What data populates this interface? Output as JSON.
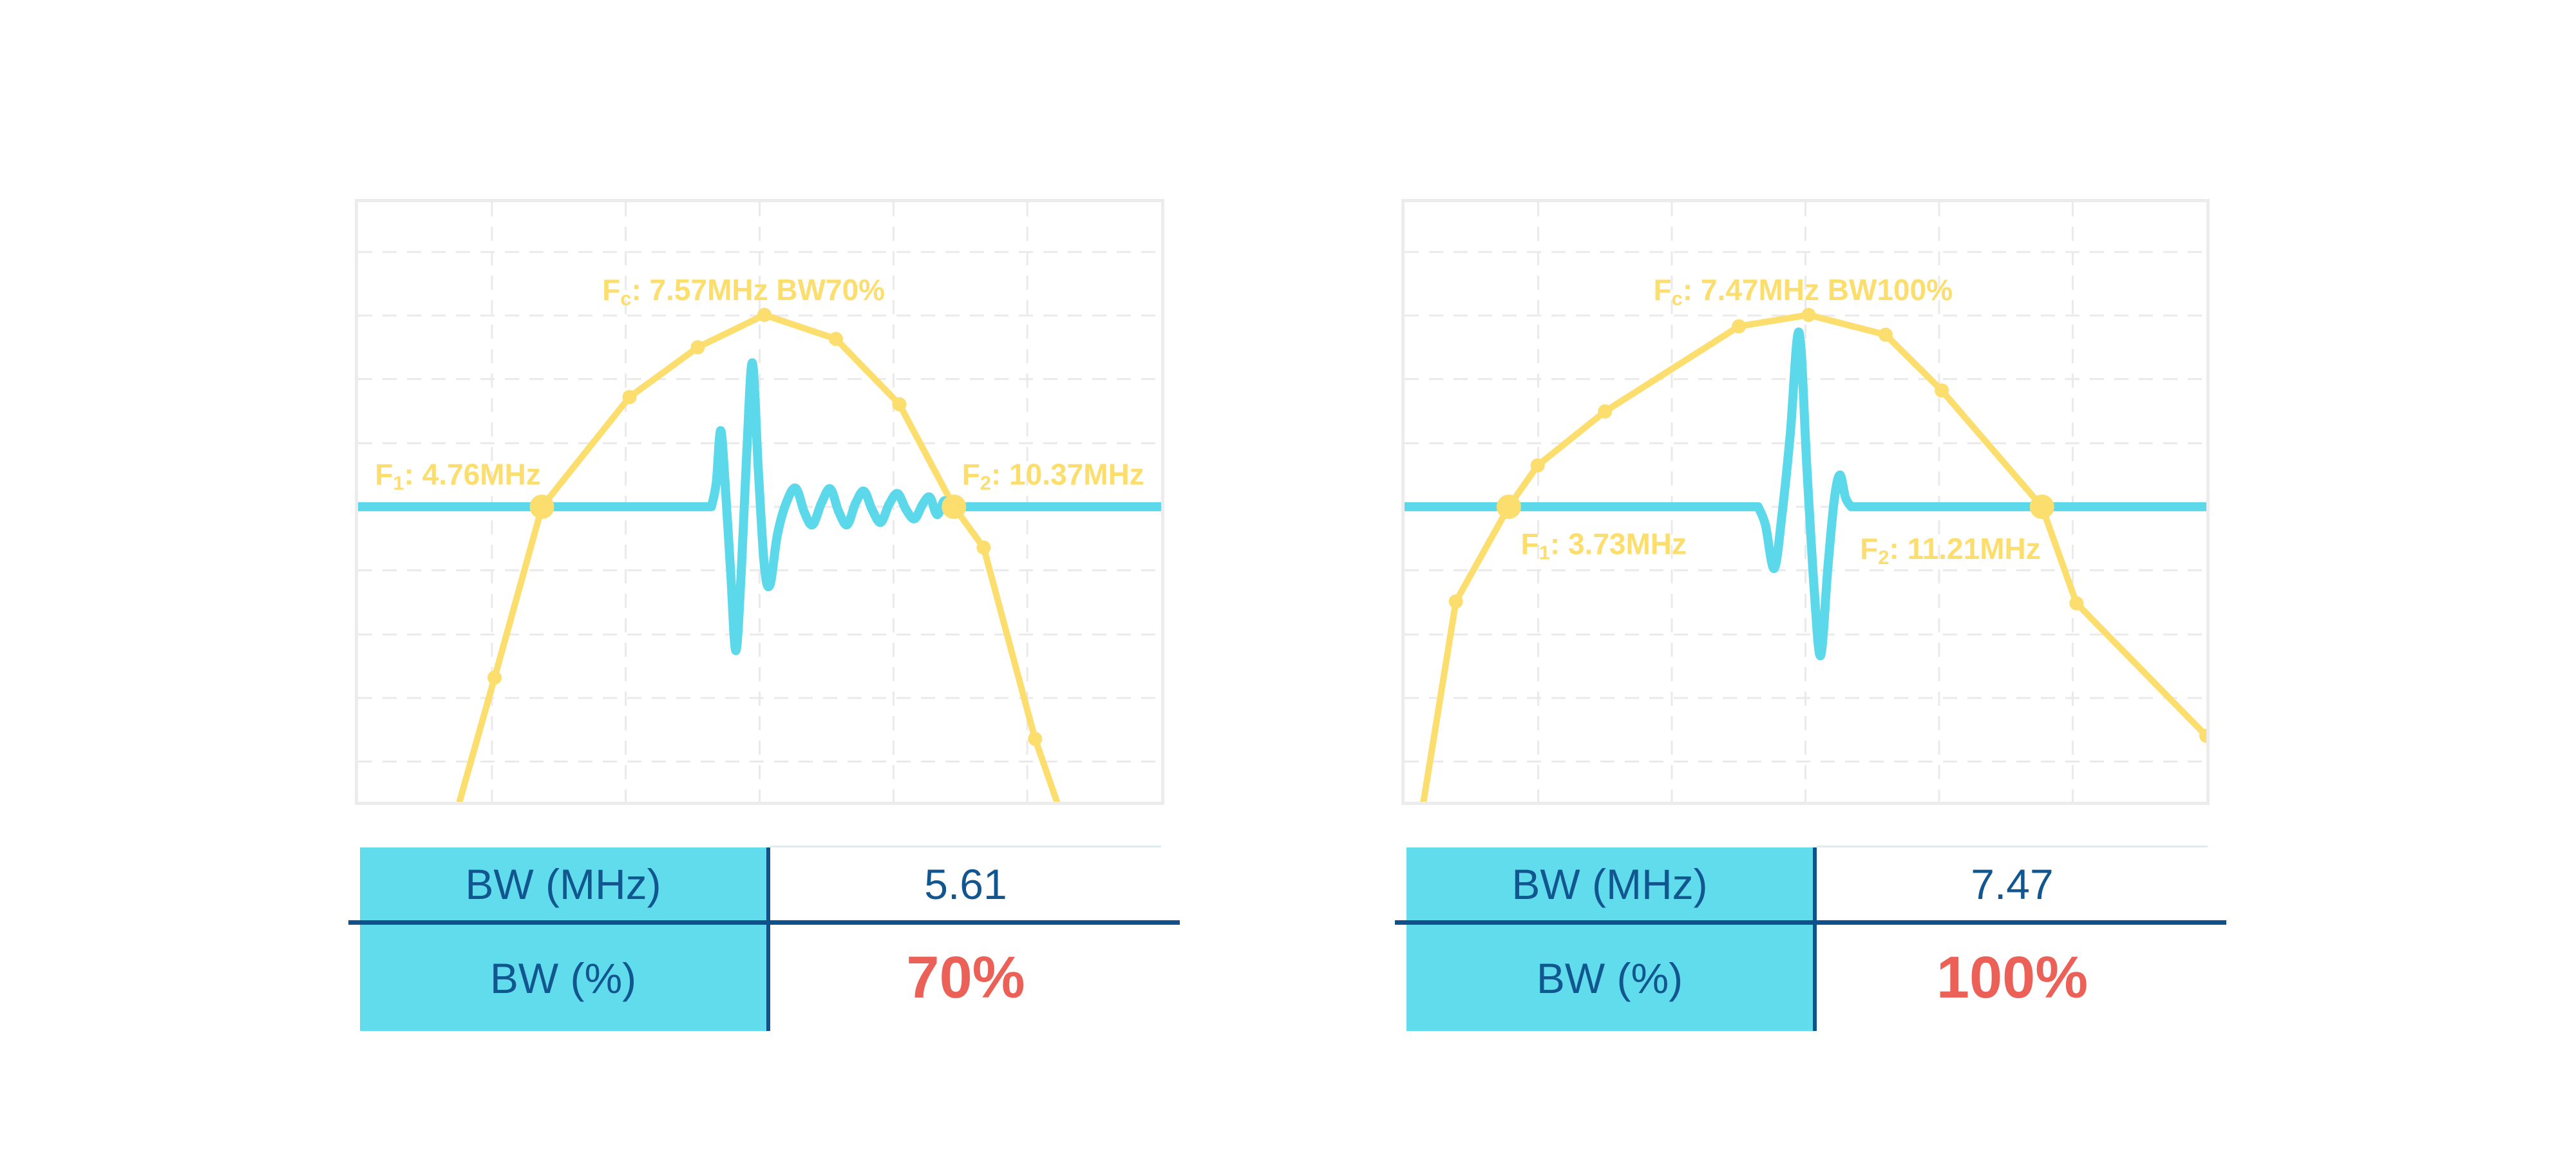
{
  "colors": {
    "yellow": "#FBDE6E",
    "cyan": "#5BD9EA",
    "table_cyan": "#61DCEC",
    "navy": "#11568E",
    "line_navy": "#0F5188",
    "red": "#EB6158",
    "grid": "#EAEAEA",
    "border": "#ECECEC",
    "table_topline": "#D8EFF6"
  },
  "grid": {
    "vlines": [
      0.1667,
      0.3333,
      0.5,
      0.6667,
      0.8333
    ],
    "hlines": [
      0.083,
      0.189,
      0.295,
      0.402,
      0.508,
      0.614,
      0.721,
      0.827,
      0.933
    ]
  },
  "chart_data": [
    {
      "type": "line",
      "name": "transducer-spectrum-bw70",
      "center_frequency_mhz": 7.57,
      "f1_mhz": 4.76,
      "f2_mhz": 10.37,
      "bandwidth_mhz": 5.61,
      "bandwidth_pct": 70,
      "coords": "normalized fraction of plot area, y measured from top",
      "baseline_y": 0.508,
      "annotations": [
        {
          "pre": "F",
          "sub": "c",
          "post": ": 7.57MHz BW70%",
          "x": 0.48,
          "y": 0.146,
          "anchor": "middle"
        },
        {
          "pre": "F",
          "sub": "1",
          "post": ": 4.76MHz",
          "x": 0.021,
          "y": 0.454,
          "anchor": "start"
        },
        {
          "pre": "F",
          "sub": "2",
          "post": ": 10.37MHz",
          "x": 0.752,
          "y": 0.454,
          "anchor": "start"
        }
      ],
      "spectrum_points": [
        [
          0.12,
          1.03,
          0
        ],
        [
          0.17,
          0.793,
          1
        ],
        [
          0.229,
          0.508,
          2
        ],
        [
          0.338,
          0.325,
          1
        ],
        [
          0.423,
          0.242,
          1
        ],
        [
          0.506,
          0.188,
          1
        ],
        [
          0.595,
          0.228,
          1
        ],
        [
          0.674,
          0.337,
          1
        ],
        [
          0.742,
          0.508,
          2
        ],
        [
          0.779,
          0.576,
          1
        ],
        [
          0.843,
          0.895,
          1
        ],
        [
          0.878,
          1.03,
          0
        ]
      ],
      "pulse_flat_start": 0.44,
      "pulse_points": [
        [
          0.44,
          0.0
        ],
        [
          0.446,
          0.04
        ],
        [
          0.4515,
          0.127
        ],
        [
          0.457,
          0.04
        ],
        [
          0.464,
          -0.11
        ],
        [
          0.4705,
          -0.24
        ],
        [
          0.4775,
          -0.1
        ],
        [
          0.484,
          0.09
        ],
        [
          0.491,
          0.24
        ],
        [
          0.4985,
          0.06
        ],
        [
          0.506,
          -0.1
        ],
        [
          0.513,
          -0.13
        ],
        [
          0.522,
          -0.048
        ],
        [
          0.533,
          0.006
        ],
        [
          0.545,
          0.031
        ],
        [
          0.556,
          -0.01
        ],
        [
          0.566,
          -0.03
        ],
        [
          0.577,
          0.006
        ],
        [
          0.588,
          0.03
        ],
        [
          0.5985,
          -0.008
        ],
        [
          0.609,
          -0.03
        ],
        [
          0.6195,
          0.006
        ],
        [
          0.63,
          0.026
        ],
        [
          0.6405,
          -0.006
        ],
        [
          0.651,
          -0.026
        ],
        [
          0.6615,
          0.005
        ],
        [
          0.672,
          0.022
        ],
        [
          0.6825,
          -0.005
        ],
        [
          0.693,
          -0.02
        ],
        [
          0.703,
          0.004
        ],
        [
          0.712,
          0.016
        ],
        [
          0.721,
          -0.013
        ],
        [
          0.73,
          0.01
        ],
        [
          0.736,
          -0.007
        ],
        [
          0.742,
          0.0
        ]
      ]
    },
    {
      "type": "line",
      "name": "transducer-spectrum-bw100",
      "center_frequency_mhz": 7.47,
      "f1_mhz": 3.73,
      "f2_mhz": 11.21,
      "bandwidth_mhz": 7.47,
      "bandwidth_pct": 100,
      "coords": "normalized fraction of plot area, y measured from top",
      "baseline_y": 0.508,
      "annotations": [
        {
          "pre": "F",
          "sub": "c",
          "post": ": 7.47MHz BW100%",
          "x": 0.497,
          "y": 0.146,
          "anchor": "middle"
        },
        {
          "pre": "F",
          "sub": "1",
          "post": ": 3.73MHz",
          "x": 0.145,
          "y": 0.57,
          "anchor": "start"
        },
        {
          "pre": "F",
          "sub": "2",
          "post": ": 11.21MHz",
          "x": 0.568,
          "y": 0.578,
          "anchor": "start"
        }
      ],
      "spectrum_points": [
        [
          0.02,
          1.03,
          0
        ],
        [
          0.064,
          0.666,
          1
        ],
        [
          0.13,
          0.508,
          2
        ],
        [
          0.166,
          0.439,
          1
        ],
        [
          0.25,
          0.349,
          1
        ],
        [
          0.417,
          0.207,
          1
        ],
        [
          0.504,
          0.188,
          1
        ],
        [
          0.6,
          0.221,
          1
        ],
        [
          0.67,
          0.314,
          1
        ],
        [
          0.795,
          0.508,
          2
        ],
        [
          0.838,
          0.669,
          1
        ],
        [
          1.0,
          0.89,
          1
        ]
      ],
      "pulse_flat_start": 0.441,
      "pulse_points": [
        [
          0.441,
          0.0
        ],
        [
          0.45,
          -0.03
        ],
        [
          0.461,
          -0.103
        ],
        [
          0.471,
          -0.01
        ],
        [
          0.481,
          0.12
        ],
        [
          0.492,
          0.291
        ],
        [
          0.502,
          0.06
        ],
        [
          0.511,
          -0.14
        ],
        [
          0.519,
          -0.248
        ],
        [
          0.528,
          -0.1
        ],
        [
          0.536,
          0.012
        ],
        [
          0.543,
          0.053
        ],
        [
          0.55,
          0.015
        ],
        [
          0.557,
          0.0
        ]
      ]
    }
  ],
  "tables": [
    {
      "rows": [
        {
          "label": "BW (MHz)",
          "value": "5.61"
        },
        {
          "label": "BW (%)",
          "value": "70%"
        }
      ]
    },
    {
      "rows": [
        {
          "label": "BW (MHz)",
          "value": "7.47"
        },
        {
          "label": "BW (%)",
          "value": "100%"
        }
      ]
    }
  ]
}
